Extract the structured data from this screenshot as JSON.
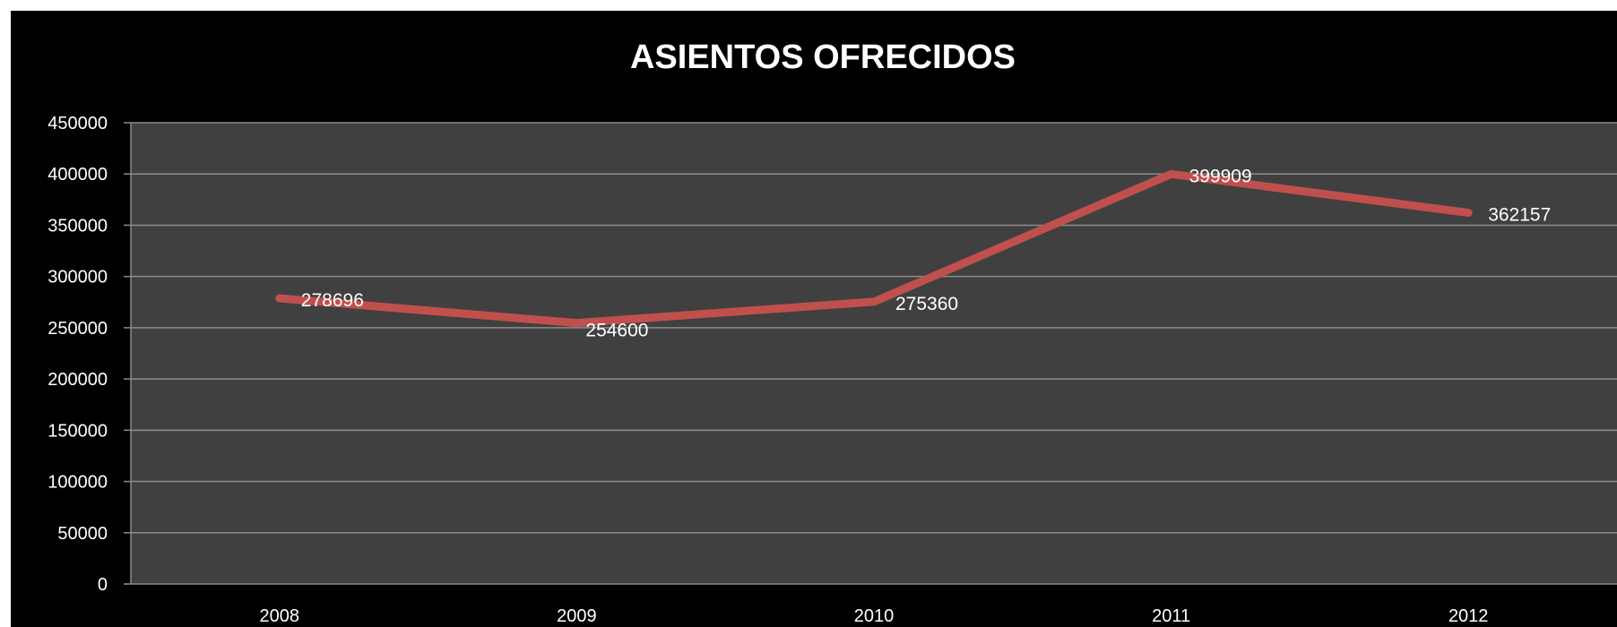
{
  "chart_data": {
    "type": "line",
    "title": "ASIENTOS OFRECIDOS",
    "xlabel": "",
    "ylabel": "",
    "categories": [
      "2008",
      "2009",
      "2010",
      "2011",
      "2012"
    ],
    "series": [
      {
        "values": [
          278696,
          254600,
          275360,
          399909,
          362157
        ],
        "data_labels": [
          "278696",
          "254600",
          "275360",
          "399909",
          "362157"
        ]
      }
    ],
    "ylim": [
      0,
      450000
    ],
    "yticks": [
      "0",
      "50000",
      "100000",
      "150000",
      "200000",
      "250000",
      "300000",
      "350000",
      "400000",
      "450000"
    ],
    "grid": true,
    "legend": "none",
    "colors": {
      "background": "#000000",
      "plot_area": "#404040",
      "gridline": "#8c8c8c",
      "line": "#c0504d",
      "text": "#ffffff"
    }
  }
}
